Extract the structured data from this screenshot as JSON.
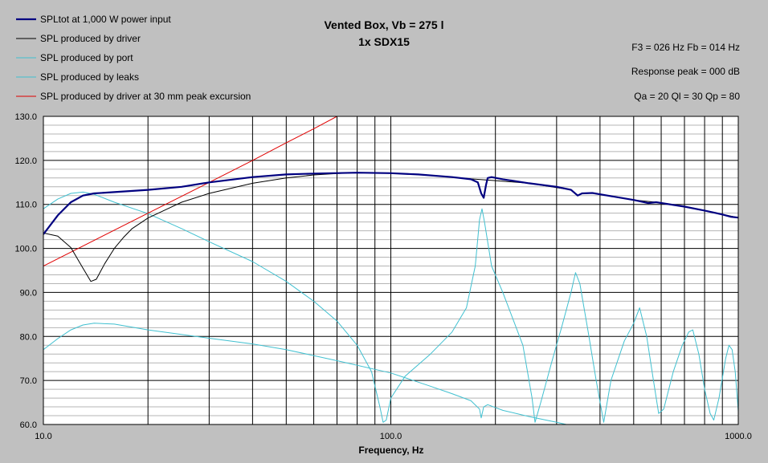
{
  "chart_data": {
    "type": "line",
    "title": "Vented Box, Vb = 275 l",
    "subtitle": "1x SDX15",
    "info_lines": [
      "F3 = 026 Hz  Fb = 014 Hz",
      "Response peak = 000 dB",
      "Qa = 20  Ql = 30  Qp = 80"
    ],
    "xlabel": "Frequency, Hz",
    "ylabel": "",
    "x_scale": "log",
    "xlim": [
      10,
      1000
    ],
    "ylim": [
      60,
      130
    ],
    "x_tick_labels": [
      {
        "value": 10,
        "label": "10.0"
      },
      {
        "value": 100,
        "label": "100.0"
      },
      {
        "value": 1000,
        "label": "1000.0"
      }
    ],
    "y_tick_labels": [
      {
        "value": 60,
        "label": "60.0"
      },
      {
        "value": 70,
        "label": "70.0"
      },
      {
        "value": 80,
        "label": "80.0"
      },
      {
        "value": 90,
        "label": "90.0"
      },
      {
        "value": 100,
        "label": "100.0"
      },
      {
        "value": 110,
        "label": "110.0"
      },
      {
        "value": 120,
        "label": "120.0"
      },
      {
        "value": 130,
        "label": "130.0"
      }
    ],
    "grid": true,
    "legend_position": "top-left",
    "series": [
      {
        "name": "SPLtot at 1,000 W power input",
        "color": "#000080",
        "width": 2.2,
        "points": [
          [
            10,
            103.2
          ],
          [
            11,
            107.5
          ],
          [
            12,
            110.5
          ],
          [
            13,
            112.0
          ],
          [
            14,
            112.5
          ],
          [
            16,
            112.8
          ],
          [
            20,
            113.3
          ],
          [
            25,
            114.0
          ],
          [
            30,
            115.0
          ],
          [
            40,
            116.2
          ],
          [
            50,
            116.8
          ],
          [
            60,
            117.0
          ],
          [
            80,
            117.2
          ],
          [
            100,
            117.1
          ],
          [
            120,
            116.8
          ],
          [
            150,
            116.2
          ],
          [
            170,
            115.7
          ],
          [
            178,
            115.0
          ],
          [
            182,
            112.5
          ],
          [
            185,
            111.5
          ],
          [
            188,
            114.5
          ],
          [
            190,
            116.0
          ],
          [
            195,
            116.2
          ],
          [
            210,
            115.7
          ],
          [
            250,
            114.8
          ],
          [
            300,
            114.0
          ],
          [
            330,
            113.3
          ],
          [
            345,
            112.0
          ],
          [
            355,
            112.5
          ],
          [
            380,
            112.6
          ],
          [
            420,
            112.0
          ],
          [
            500,
            111.0
          ],
          [
            550,
            110.3
          ],
          [
            580,
            110.5
          ],
          [
            700,
            109.5
          ],
          [
            800,
            108.6
          ],
          [
            900,
            107.7
          ],
          [
            950,
            107.2
          ],
          [
            1000,
            107.0
          ]
        ]
      },
      {
        "name": "SPL produced by driver",
        "color": "#000000",
        "width": 1,
        "points": [
          [
            10,
            103.5
          ],
          [
            11,
            102.8
          ],
          [
            12,
            100.2
          ],
          [
            13,
            95.5
          ],
          [
            13.7,
            92.5
          ],
          [
            14.2,
            93.0
          ],
          [
            15,
            96.5
          ],
          [
            16,
            100.0
          ],
          [
            17,
            102.5
          ],
          [
            18,
            104.5
          ],
          [
            20,
            106.9
          ],
          [
            25,
            110.5
          ],
          [
            30,
            112.5
          ],
          [
            40,
            114.8
          ],
          [
            50,
            116.0
          ],
          [
            60,
            116.7
          ],
          [
            70,
            117.0
          ],
          [
            80,
            117.2
          ],
          [
            100,
            117.1
          ],
          [
            130,
            116.6
          ],
          [
            170,
            115.8
          ],
          [
            200,
            115.4
          ],
          [
            250,
            114.8
          ],
          [
            330,
            113.3
          ],
          [
            345,
            112.0
          ],
          [
            355,
            112.5
          ],
          [
            380,
            112.6
          ],
          [
            500,
            111.0
          ],
          [
            580,
            110.5
          ],
          [
            700,
            109.5
          ],
          [
            800,
            108.6
          ],
          [
            1000,
            107.0
          ]
        ]
      },
      {
        "name": "SPL produced by port",
        "color": "#40c0d0",
        "width": 1,
        "points": [
          [
            10,
            109.0
          ],
          [
            11,
            111.2
          ],
          [
            12,
            112.5
          ],
          [
            13,
            112.8
          ],
          [
            14,
            112.3
          ],
          [
            16,
            110.5
          ],
          [
            20,
            107.9
          ],
          [
            25,
            104.5
          ],
          [
            30,
            101.5
          ],
          [
            40,
            97.0
          ],
          [
            50,
            92.5
          ],
          [
            60,
            88.0
          ],
          [
            70,
            83.5
          ],
          [
            80,
            78.0
          ],
          [
            88,
            72.0
          ],
          [
            93,
            64.0
          ],
          [
            95,
            60.5
          ],
          [
            97,
            61.0
          ],
          [
            100,
            66.0
          ],
          [
            110,
            71.0
          ],
          [
            130,
            76.0
          ],
          [
            150,
            81.0
          ],
          [
            165,
            86.5
          ],
          [
            175,
            96.0
          ],
          [
            180,
            106.5
          ],
          [
            183,
            109.0
          ],
          [
            186,
            106.0
          ],
          [
            195,
            96.0
          ],
          [
            210,
            90.0
          ],
          [
            240,
            78.0
          ],
          [
            255,
            66.0
          ],
          [
            260,
            60.5
          ],
          [
            270,
            65.0
          ],
          [
            290,
            74.0
          ],
          [
            310,
            82.0
          ],
          [
            330,
            90.0
          ],
          [
            340,
            94.5
          ],
          [
            350,
            92.0
          ],
          [
            370,
            81.0
          ],
          [
            390,
            70.0
          ],
          [
            410,
            60.5
          ],
          [
            430,
            70.0
          ],
          [
            470,
            79.0
          ],
          [
            500,
            83.0
          ],
          [
            520,
            86.5
          ],
          [
            545,
            80.0
          ],
          [
            570,
            70.0
          ],
          [
            590,
            62.5
          ],
          [
            610,
            63.5
          ],
          [
            650,
            72.0
          ],
          [
            690,
            78.0
          ],
          [
            720,
            81.0
          ],
          [
            740,
            81.5
          ],
          [
            770,
            76.0
          ],
          [
            800,
            68.0
          ],
          [
            830,
            62.5
          ],
          [
            850,
            61.0
          ],
          [
            880,
            66.0
          ],
          [
            920,
            75.0
          ],
          [
            940,
            78.0
          ],
          [
            960,
            77.0
          ],
          [
            980,
            72.0
          ],
          [
            1000,
            63.0
          ]
        ]
      },
      {
        "name": "SPL produced by leaks",
        "color": "#40c0d0",
        "width": 1,
        "points": [
          [
            10,
            77.0
          ],
          [
            11,
            79.5
          ],
          [
            12,
            81.5
          ],
          [
            13,
            82.6
          ],
          [
            14,
            83.0
          ],
          [
            16,
            82.8
          ],
          [
            20,
            81.5
          ],
          [
            30,
            79.6
          ],
          [
            40,
            78.3
          ],
          [
            50,
            77.0
          ],
          [
            70,
            74.5
          ],
          [
            100,
            71.7
          ],
          [
            130,
            68.7
          ],
          [
            150,
            67.0
          ],
          [
            170,
            65.4
          ],
          [
            180,
            63.5
          ],
          [
            182,
            61.5
          ],
          [
            185,
            64.0
          ],
          [
            190,
            64.5
          ],
          [
            210,
            63.2
          ],
          [
            250,
            61.8
          ],
          [
            300,
            60.5
          ],
          [
            320,
            60.0
          ]
        ]
      },
      {
        "name": "SPL produced by driver at 30 mm peak excursion",
        "color": "#e00000",
        "width": 1,
        "points": [
          [
            10,
            96.0
          ],
          [
            20,
            108.0
          ],
          [
            30,
            115.0
          ],
          [
            40,
            120.0
          ],
          [
            50,
            124.0
          ],
          [
            60,
            127.2
          ],
          [
            70,
            130.0
          ]
        ]
      }
    ]
  }
}
